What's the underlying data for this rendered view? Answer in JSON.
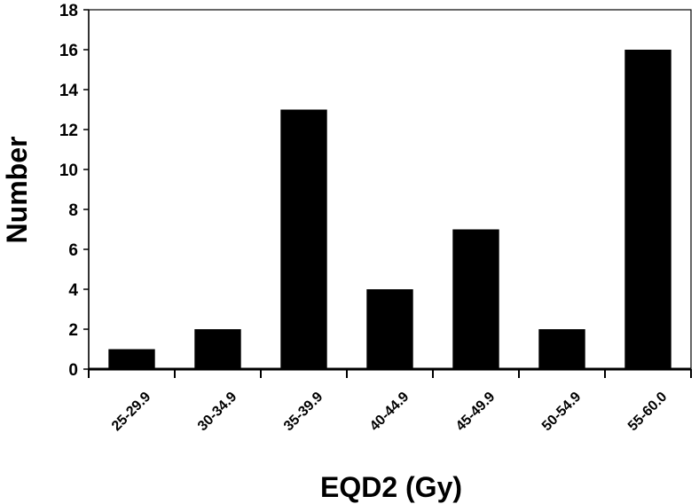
{
  "chart_data": {
    "type": "bar",
    "title": "",
    "xlabel": "EQD2 (Gy)",
    "ylabel": "Number",
    "categories": [
      "25-29.9",
      "30-34.9",
      "35-39.9",
      "40-44.9",
      "45-49.9",
      "50-54.9",
      "55-60.0"
    ],
    "values": [
      1,
      2,
      13,
      4,
      7,
      2,
      16
    ],
    "ylim": [
      0,
      18
    ],
    "yticks": [
      "0",
      "2",
      "4",
      "6",
      "8",
      "10",
      "12",
      "14",
      "16",
      "18"
    ],
    "grid": false,
    "legend": "none",
    "bar_color": "#000000"
  }
}
